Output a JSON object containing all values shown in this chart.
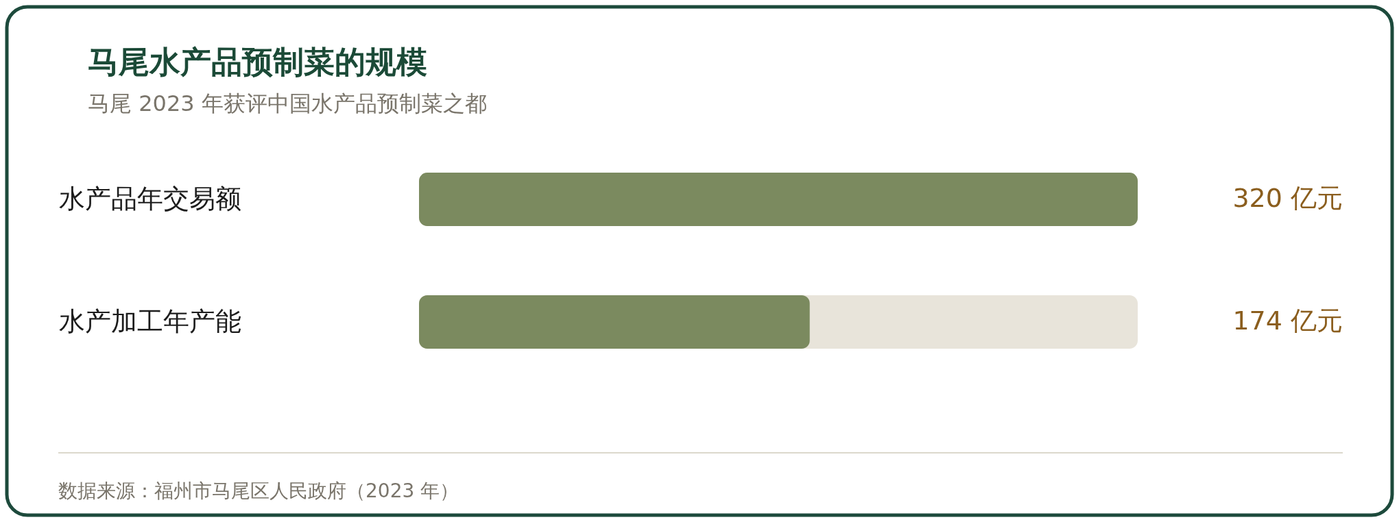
{
  "chart_data": {
    "type": "bar",
    "orientation": "horizontal",
    "title": "马尾水产品预制菜的规模",
    "subtitle": "马尾 2023 年获评中国水产品预制菜之都",
    "categories": [
      "水产品年交易额",
      "水产加工年产能"
    ],
    "values": [
      320,
      174
    ],
    "color": "#7b8a5f",
    "value_labels": [
      "320 亿元",
      "174 亿元"
    ],
    "xlim": [
      0,
      320
    ],
    "tick_labels": "y",
    "annotations": [
      "数据来源：福州市马尾区人民政府（2023 年）"
    ]
  }
}
